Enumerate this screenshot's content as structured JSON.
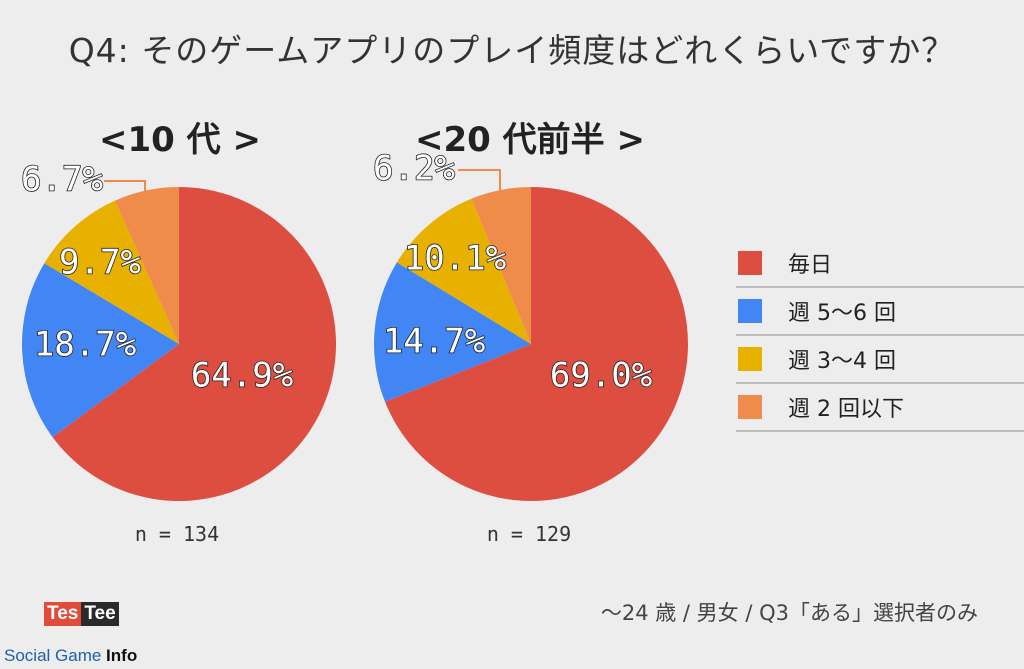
{
  "title": "Q4: そのゲームアプリのプレイ頻度はどれくらいですか？",
  "chart_data": [
    {
      "type": "pie",
      "title": "<10 代 >",
      "n_label": "n = 134",
      "categories": [
        "毎日",
        "週 5〜6 回",
        "週 3〜4 回",
        "週 2 回以下"
      ],
      "values": [
        64.9,
        18.7,
        9.7,
        6.7
      ],
      "labels": [
        "64.9%",
        "18.7%",
        "9.7%",
        "6.7%"
      ]
    },
    {
      "type": "pie",
      "title": "<20 代前半 >",
      "n_label": "n = 129",
      "categories": [
        "毎日",
        "週 5〜6 回",
        "週 3〜4 回",
        "週 2 回以下"
      ],
      "values": [
        69.0,
        14.7,
        10.1,
        6.2
      ],
      "labels": [
        "69.0%",
        "14.7%",
        "10.1%",
        "6.2%"
      ]
    }
  ],
  "legend": {
    "items": [
      {
        "label": "毎日",
        "color": "#dd4e41"
      },
      {
        "label": "週 5〜6 回",
        "color": "#4285f4"
      },
      {
        "label": "週 3〜4 回",
        "color": "#e8b100"
      },
      {
        "label": "週 2 回以下",
        "color": "#ef8c4b"
      }
    ]
  },
  "footer": {
    "note": "〜24 歳 / 男女 / Q3「ある」選択者のみ",
    "logo_left": "Tes",
    "logo_right": "Tee",
    "brand_prefix": "Social Game ",
    "brand_suffix": "Info"
  }
}
